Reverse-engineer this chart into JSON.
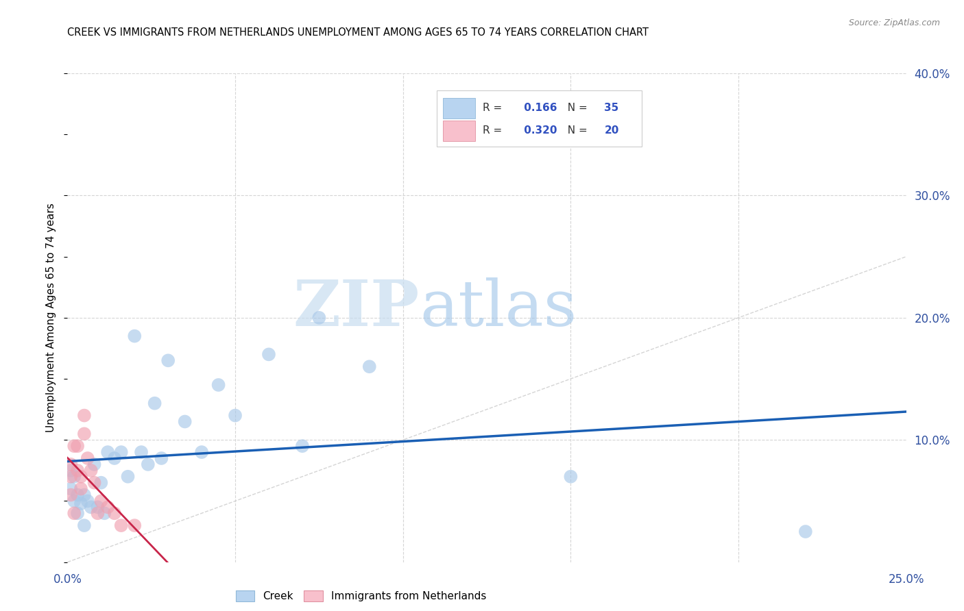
{
  "title": "CREEK VS IMMIGRANTS FROM NETHERLANDS UNEMPLOYMENT AMONG AGES 65 TO 74 YEARS CORRELATION CHART",
  "source": "Source: ZipAtlas.com",
  "ylabel": "Unemployment Among Ages 65 to 74 years",
  "xlim": [
    0.0,
    0.25
  ],
  "ylim": [
    0.0,
    0.4
  ],
  "xticks": [
    0.0,
    0.05,
    0.1,
    0.15,
    0.2,
    0.25
  ],
  "yticks": [
    0.0,
    0.1,
    0.2,
    0.3,
    0.4
  ],
  "xticklabels": [
    "0.0%",
    "",
    "",
    "",
    "",
    "25.0%"
  ],
  "yticklabels": [
    "",
    "10.0%",
    "20.0%",
    "30.0%",
    "40.0%"
  ],
  "creek_scatter_color": "#a8c8e8",
  "netherlands_scatter_color": "#f0a0b0",
  "creek_line_color": "#1a5fb4",
  "netherlands_line_color": "#c8254a",
  "creek_legend_color": "#b8d4f0",
  "netherlands_legend_color": "#f8c0cc",
  "diagonal_color": "#d0d0d0",
  "watermark_zip": "ZIP",
  "watermark_atlas": "atlas",
  "creek_R": 0.166,
  "creek_N": 35,
  "netherlands_R": 0.32,
  "netherlands_N": 20,
  "creek_x": [
    0.001,
    0.001,
    0.002,
    0.002,
    0.003,
    0.003,
    0.004,
    0.005,
    0.005,
    0.006,
    0.007,
    0.008,
    0.009,
    0.01,
    0.011,
    0.012,
    0.014,
    0.016,
    0.018,
    0.02,
    0.022,
    0.024,
    0.026,
    0.028,
    0.03,
    0.035,
    0.04,
    0.045,
    0.05,
    0.06,
    0.07,
    0.075,
    0.09,
    0.15,
    0.22
  ],
  "creek_y": [
    0.075,
    0.06,
    0.07,
    0.05,
    0.055,
    0.04,
    0.048,
    0.03,
    0.055,
    0.05,
    0.045,
    0.08,
    0.045,
    0.065,
    0.04,
    0.09,
    0.085,
    0.09,
    0.07,
    0.185,
    0.09,
    0.08,
    0.13,
    0.085,
    0.165,
    0.115,
    0.09,
    0.145,
    0.12,
    0.17,
    0.095,
    0.2,
    0.16,
    0.07,
    0.025
  ],
  "netherlands_x": [
    0.001,
    0.001,
    0.001,
    0.002,
    0.002,
    0.003,
    0.003,
    0.004,
    0.004,
    0.005,
    0.005,
    0.006,
    0.007,
    0.008,
    0.009,
    0.01,
    0.012,
    0.014,
    0.016,
    0.02
  ],
  "netherlands_y": [
    0.055,
    0.07,
    0.08,
    0.04,
    0.095,
    0.075,
    0.095,
    0.06,
    0.07,
    0.105,
    0.12,
    0.085,
    0.075,
    0.065,
    0.04,
    0.05,
    0.045,
    0.04,
    0.03,
    0.03
  ]
}
